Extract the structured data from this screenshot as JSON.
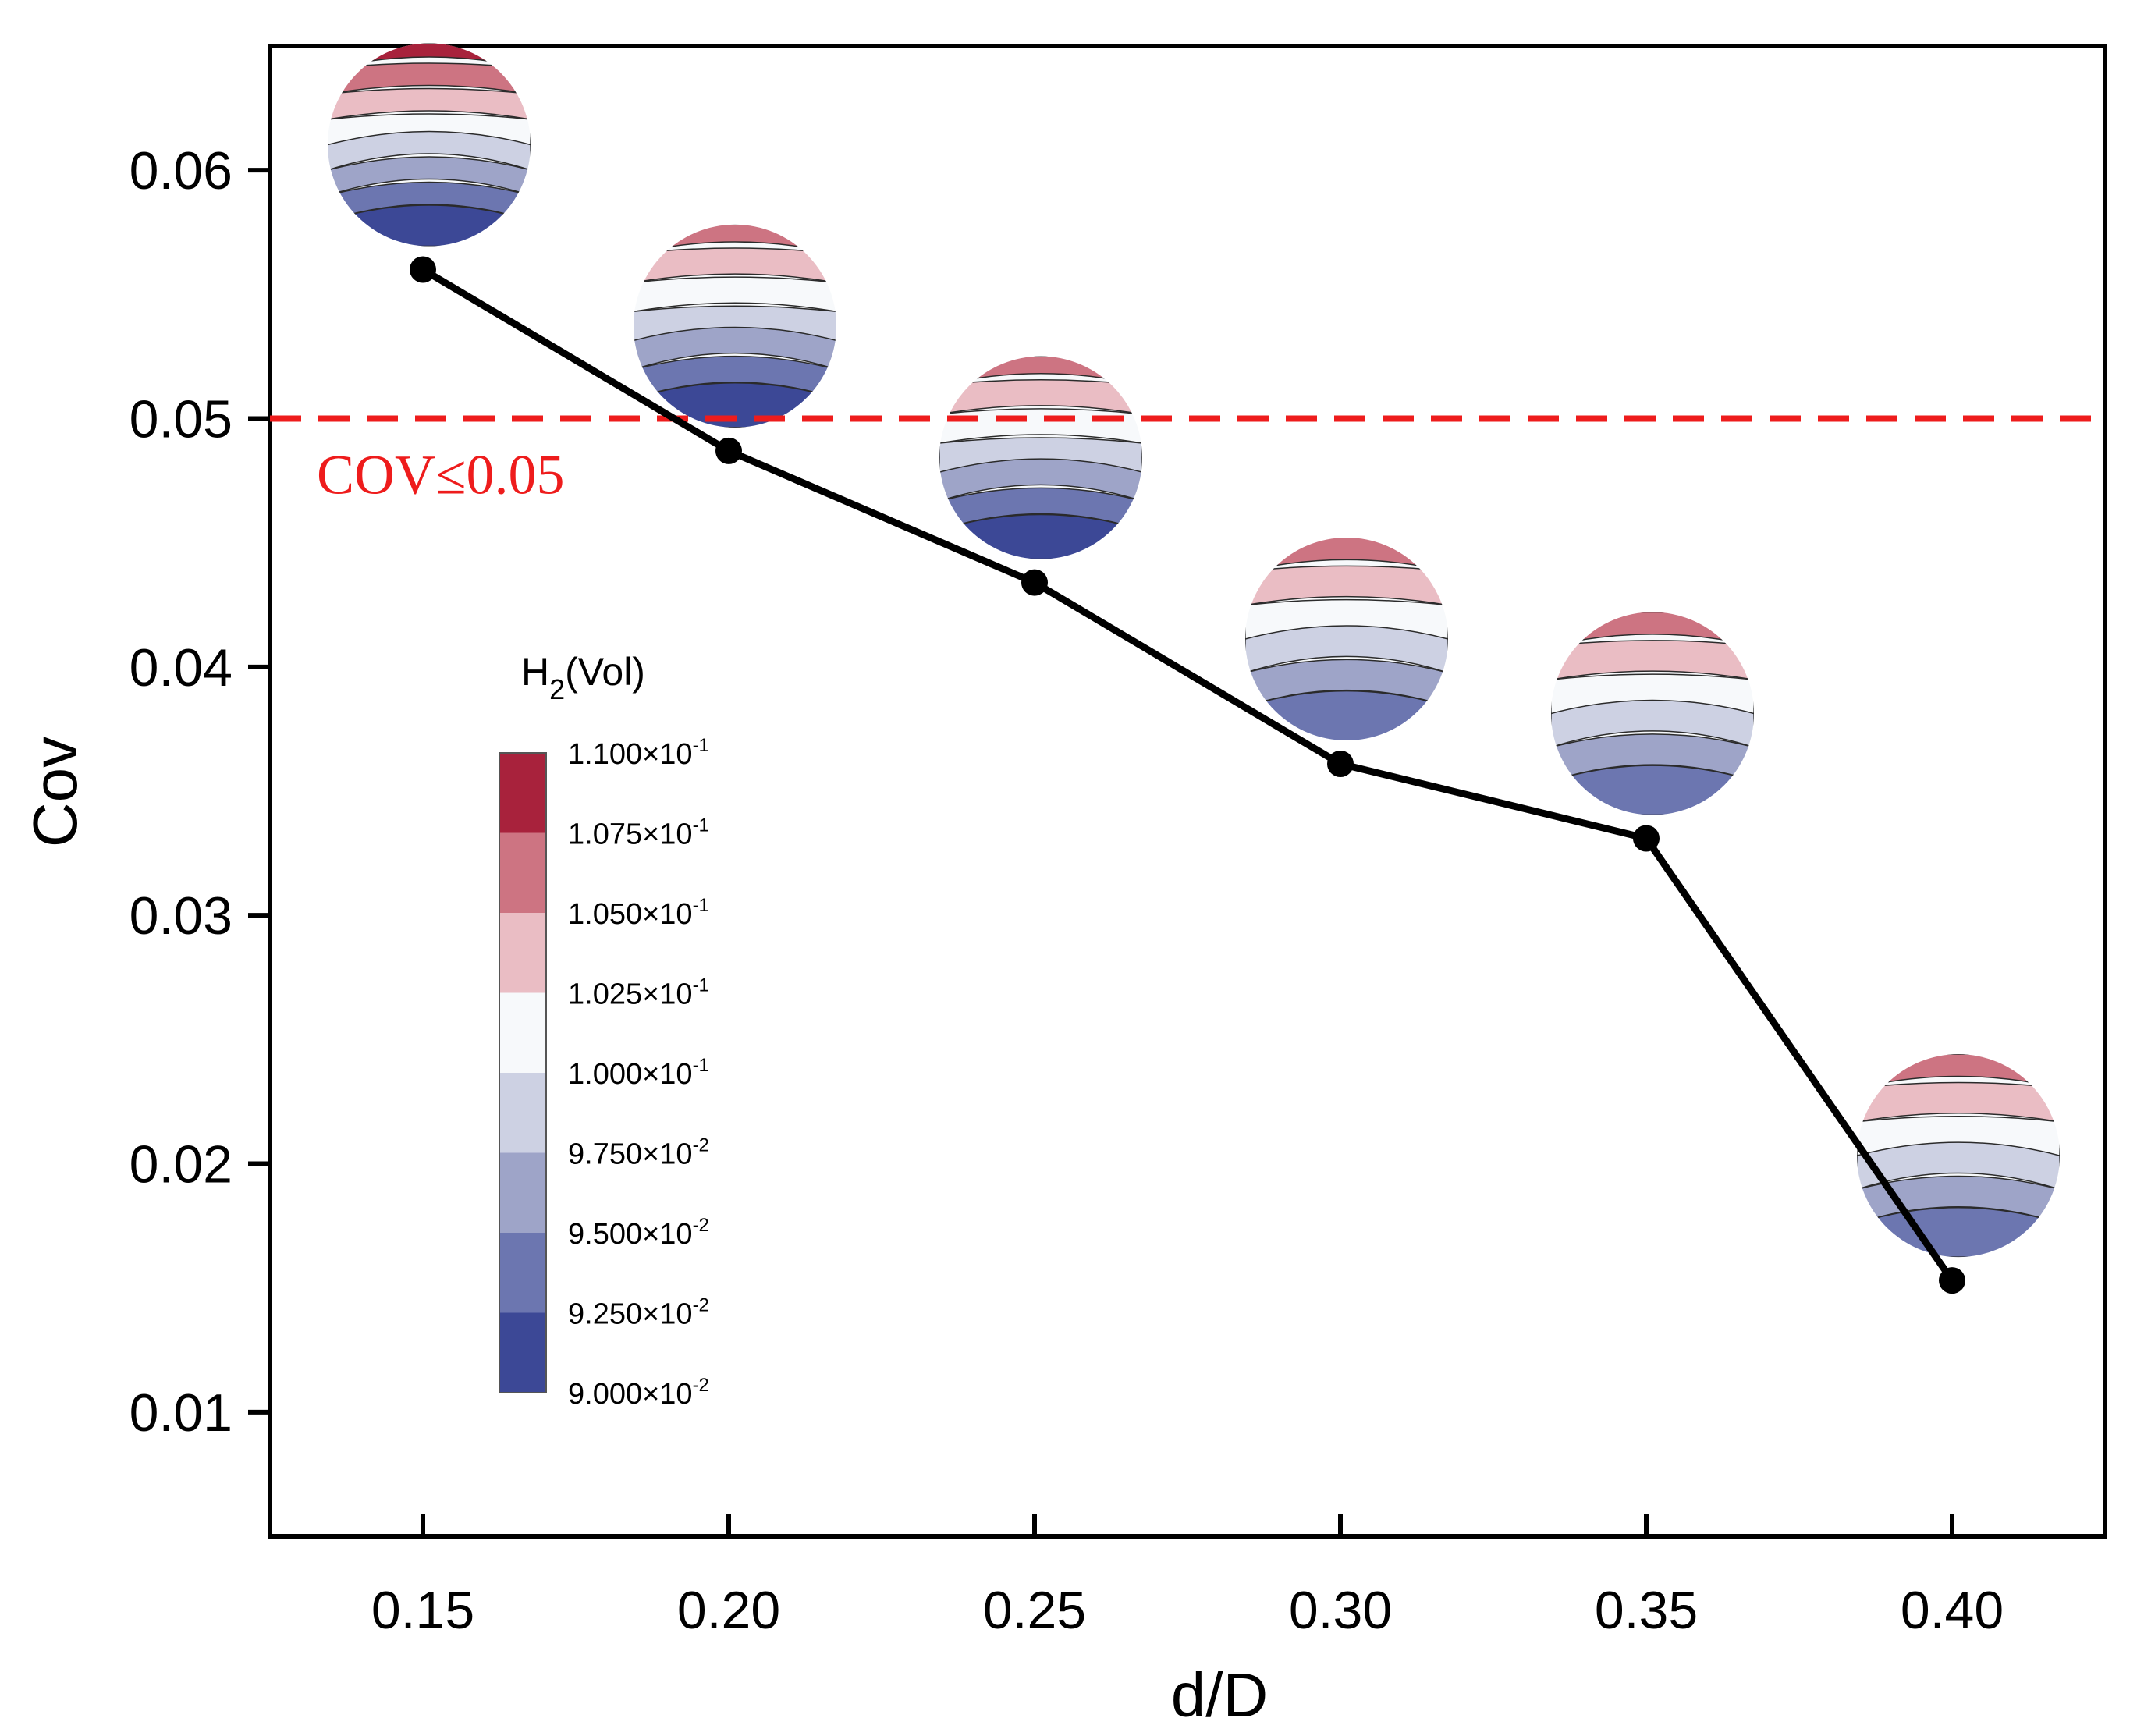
{
  "chart_data": {
    "type": "line",
    "title": "",
    "xlabel": "d/D",
    "ylabel": "Cov",
    "xlim": [
      0.125,
      0.425
    ],
    "ylim": [
      0.005,
      0.065
    ],
    "x": [
      0.15,
      0.2,
      0.25,
      0.3,
      0.35,
      0.4
    ],
    "xtick_labels": [
      "0.15",
      "0.20",
      "0.25",
      "0.30",
      "0.35",
      "0.40"
    ],
    "yticks": [
      0.01,
      0.02,
      0.03,
      0.04,
      0.05,
      0.06
    ],
    "ytick_labels": [
      "0.01",
      "0.02",
      "0.03",
      "0.04",
      "0.05",
      "0.06"
    ],
    "series": [
      {
        "name": "Cov",
        "values": [
          0.056,
          0.0487,
          0.0434,
          0.0361,
          0.0331,
          0.0153
        ],
        "color": "#000000"
      }
    ],
    "threshold": {
      "value": 0.05,
      "label": "COV≤0.05",
      "color": "#ee1c1c",
      "style": "dashed"
    },
    "colorbar": {
      "title_base": "H",
      "title_sub": "2",
      "title_rest": "(Vol)",
      "levels": [
        {
          "mantissa": "1.100×10",
          "exp": "-1"
        },
        {
          "mantissa": "1.075×10",
          "exp": "-1"
        },
        {
          "mantissa": "1.050×10",
          "exp": "-1"
        },
        {
          "mantissa": "1.025×10",
          "exp": "-1"
        },
        {
          "mantissa": "1.000×10",
          "exp": "-1"
        },
        {
          "mantissa": "9.750×10",
          "exp": "-2"
        },
        {
          "mantissa": "9.500×10",
          "exp": "-2"
        },
        {
          "mantissa": "9.250×10",
          "exp": "-2"
        },
        {
          "mantissa": "9.000×10",
          "exp": "-2"
        }
      ],
      "colors": [
        "#a8223c",
        "#cd7482",
        "#eabdc4",
        "#f7f9fb",
        "#cdd1e3",
        "#9ea4c8",
        "#6c76b0",
        "#3c4896"
      ]
    },
    "contour_insets": [
      {
        "x": 0.15,
        "bands": [
          "#a8223c",
          "#cd7482",
          "#eabdc4",
          "#f7f9fb",
          "#cdd1e3",
          "#9ea4c8",
          "#6c76b0",
          "#3c4896"
        ]
      },
      {
        "x": 0.2,
        "bands": [
          "#cd7482",
          "#eabdc4",
          "#f7f9fb",
          "#cdd1e3",
          "#9ea4c8",
          "#6c76b0",
          "#3c4896"
        ]
      },
      {
        "x": 0.25,
        "bands": [
          "#cd7482",
          "#eabdc4",
          "#f7f9fb",
          "#cdd1e3",
          "#9ea4c8",
          "#6c76b0",
          "#3c4896"
        ]
      },
      {
        "x": 0.3,
        "bands": [
          "#cd7482",
          "#eabdc4",
          "#f7f9fb",
          "#cdd1e3",
          "#9ea4c8",
          "#6c76b0"
        ]
      },
      {
        "x": 0.35,
        "bands": [
          "#cd7482",
          "#eabdc4",
          "#f7f9fb",
          "#cdd1e3",
          "#9ea4c8",
          "#6c76b0"
        ]
      },
      {
        "x": 0.4,
        "bands": [
          "#cd7482",
          "#eabdc4",
          "#f7f9fb",
          "#cdd1e3",
          "#9ea4c8",
          "#6c76b0"
        ]
      }
    ]
  }
}
